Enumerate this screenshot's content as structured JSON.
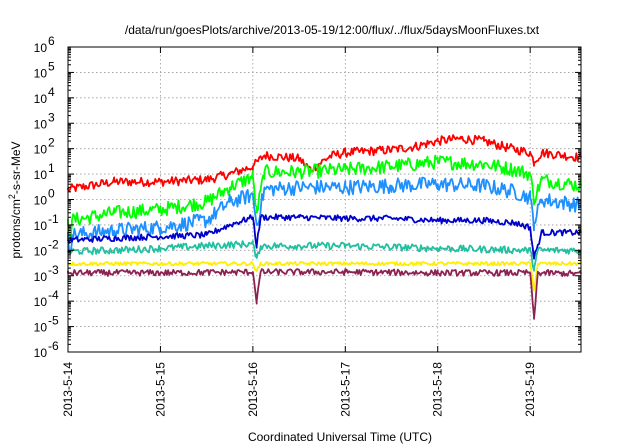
{
  "chart_data": {
    "type": "line",
    "title": "/data/run/goesPlots/archive/2013-05-19/12:00/flux/../flux/5daysMoonFluxes.txt",
    "xlabel": "Coordinated Universal Time (UTC)",
    "ylabel": {
      "pre": "protons/cm",
      "sup": "2",
      "post": "-s-sr-MeV"
    },
    "y_scale": "log",
    "ylim": [
      1e-06,
      1000000.0
    ],
    "xlim": [
      "2013-05-14T00:00",
      "2013-05-19T13:12"
    ],
    "grid": true,
    "x_tick_labels": [
      "2013-5-14",
      "2013-5-15",
      "2013-5-16",
      "2013-5-17",
      "2013-5-18",
      "2013-5-19"
    ],
    "x_ticks": [
      "2013-05-14T00:00",
      "2013-05-15T00:00",
      "2013-05-16T00:00",
      "2013-05-17T00:00",
      "2013-05-18T00:00",
      "2013-05-19T00:00"
    ],
    "y_tick_labels": [
      {
        "base": "10",
        "exp": "-6"
      },
      {
        "base": "10",
        "exp": "-5"
      },
      {
        "base": "10",
        "exp": "-4"
      },
      {
        "base": "10",
        "exp": "-3"
      },
      {
        "base": "10",
        "exp": "-2"
      },
      {
        "base": "10",
        "exp": "-1"
      },
      {
        "base": "10",
        "exp": "0"
      },
      {
        "base": "10",
        "exp": "1"
      },
      {
        "base": "10",
        "exp": "2"
      },
      {
        "base": "10",
        "exp": "3"
      },
      {
        "base": "10",
        "exp": "4"
      },
      {
        "base": "10",
        "exp": "5"
      },
      {
        "base": "10",
        "exp": "6"
      }
    ],
    "series": [
      {
        "color": "#ff0000",
        "noise": 0.18,
        "x": [
          "2013-05-14T00:00",
          "2013-05-14T12:00",
          "2013-05-15T00:00",
          "2013-05-15T12:00",
          "2013-05-15T18:00",
          "2013-05-16T00:00",
          "2013-05-16T03:00",
          "2013-05-16T12:00",
          "2013-05-16T15:00",
          "2013-05-16T20:00",
          "2013-05-17T00:00",
          "2013-05-17T12:00",
          "2013-05-17T18:00",
          "2013-05-18T00:00",
          "2013-05-18T06:00",
          "2013-05-18T12:00",
          "2013-05-18T18:00",
          "2013-05-19T00:00",
          "2013-05-19T01:00",
          "2013-05-19T03:00",
          "2013-05-19T13:12"
        ],
        "y": [
          2.5,
          5,
          5,
          6,
          10,
          20,
          55,
          40,
          15,
          50,
          70,
          90,
          120,
          200,
          250,
          200,
          110,
          70,
          30,
          70,
          45
        ]
      },
      {
        "color": "#00ff00",
        "noise": 0.28,
        "x": [
          "2013-05-14T00:00",
          "2013-05-14T00:30",
          "2013-05-14T01:00",
          "2013-05-14T12:00",
          "2013-05-15T00:00",
          "2013-05-15T12:00",
          "2013-05-15T18:00",
          "2013-05-16T00:00",
          "2013-05-16T01:00",
          "2013-05-16T03:00",
          "2013-05-16T12:00",
          "2013-05-17T00:00",
          "2013-05-17T12:00",
          "2013-05-18T00:00",
          "2013-05-18T12:00",
          "2013-05-18T20:00",
          "2013-05-19T00:00",
          "2013-05-19T01:00",
          "2013-05-19T03:00",
          "2013-05-19T13:12"
        ],
        "y": [
          0.12,
          0.03,
          0.15,
          0.3,
          0.4,
          0.8,
          3,
          8,
          0.3,
          12,
          12,
          15,
          20,
          30,
          25,
          15,
          10,
          1,
          6,
          3.5
        ]
      },
      {
        "color": "#1e90ff",
        "noise": 0.3,
        "x": [
          "2013-05-14T00:00",
          "2013-05-14T00:30",
          "2013-05-14T01:00",
          "2013-05-14T12:00",
          "2013-05-15T00:00",
          "2013-05-15T12:00",
          "2013-05-15T18:00",
          "2013-05-16T00:00",
          "2013-05-16T01:00",
          "2013-05-16T03:00",
          "2013-05-16T12:00",
          "2013-05-17T00:00",
          "2013-05-17T12:00",
          "2013-05-18T00:00",
          "2013-05-18T12:00",
          "2013-05-18T20:00",
          "2013-05-19T00:00",
          "2013-05-19T01:00",
          "2013-05-19T03:00",
          "2013-05-19T13:12"
        ],
        "y": [
          0.03,
          0.008,
          0.04,
          0.06,
          0.08,
          0.15,
          0.8,
          1.5,
          0.1,
          2.5,
          3,
          3,
          3.5,
          4,
          3.5,
          2,
          1.2,
          0.12,
          1,
          0.6
        ]
      },
      {
        "color": "#0000cd",
        "noise": 0.12,
        "x": [
          "2013-05-14T00:00",
          "2013-05-14T12:00",
          "2013-05-15T00:00",
          "2013-05-15T12:00",
          "2013-05-15T18:00",
          "2013-05-16T00:00",
          "2013-05-16T01:00",
          "2013-05-16T02:00",
          "2013-05-16T12:00",
          "2013-05-17T00:00",
          "2013-05-17T12:00",
          "2013-05-18T00:00",
          "2013-05-18T12:00",
          "2013-05-18T20:00",
          "2013-05-19T00:00",
          "2013-05-19T01:00",
          "2013-05-19T03:00",
          "2013-05-19T13:12"
        ],
        "y": [
          0.025,
          0.03,
          0.035,
          0.04,
          0.1,
          0.2,
          0.015,
          0.2,
          0.2,
          0.18,
          0.18,
          0.15,
          0.15,
          0.12,
          0.08,
          0.005,
          0.05,
          0.05
        ]
      },
      {
        "color": "#20c0a0",
        "noise": 0.14,
        "x": [
          "2013-05-14T00:00",
          "2013-05-14T12:00",
          "2013-05-15T00:00",
          "2013-05-15T12:00",
          "2013-05-16T00:00",
          "2013-05-16T01:00",
          "2013-05-16T02:00",
          "2013-05-17T00:00",
          "2013-05-18T00:00",
          "2013-05-19T00:00",
          "2013-05-19T01:00",
          "2013-05-19T02:00",
          "2013-05-19T13:12"
        ],
        "y": [
          0.009,
          0.01,
          0.012,
          0.015,
          0.018,
          0.005,
          0.015,
          0.015,
          0.012,
          0.01,
          0.002,
          0.01,
          0.01
        ]
      },
      {
        "color": "#ffee00",
        "noise": 0.07,
        "x": [
          "2013-05-14T00:00",
          "2013-05-15T00:00",
          "2013-05-16T00:00",
          "2013-05-16T01:00",
          "2013-05-16T02:00",
          "2013-05-17T00:00",
          "2013-05-18T00:00",
          "2013-05-19T00:00",
          "2013-05-19T01:00",
          "2013-05-19T02:00",
          "2013-05-19T13:12"
        ],
        "y": [
          0.003,
          0.003,
          0.003,
          0.0015,
          0.003,
          0.003,
          0.003,
          0.003,
          0.0003,
          0.003,
          0.003
        ]
      },
      {
        "color": "#8b2252",
        "noise": 0.12,
        "x": [
          "2013-05-14T00:00",
          "2013-05-15T00:00",
          "2013-05-16T00:00",
          "2013-05-16T01:00",
          "2013-05-16T02:00",
          "2013-05-17T00:00",
          "2013-05-18T00:00",
          "2013-05-19T00:00",
          "2013-05-19T01:00",
          "2013-05-19T02:00",
          "2013-05-19T13:12"
        ],
        "y": [
          0.0013,
          0.0013,
          0.0014,
          0.0001,
          0.0014,
          0.0014,
          0.0013,
          0.0013,
          2e-05,
          0.0013,
          0.0012
        ]
      }
    ]
  }
}
